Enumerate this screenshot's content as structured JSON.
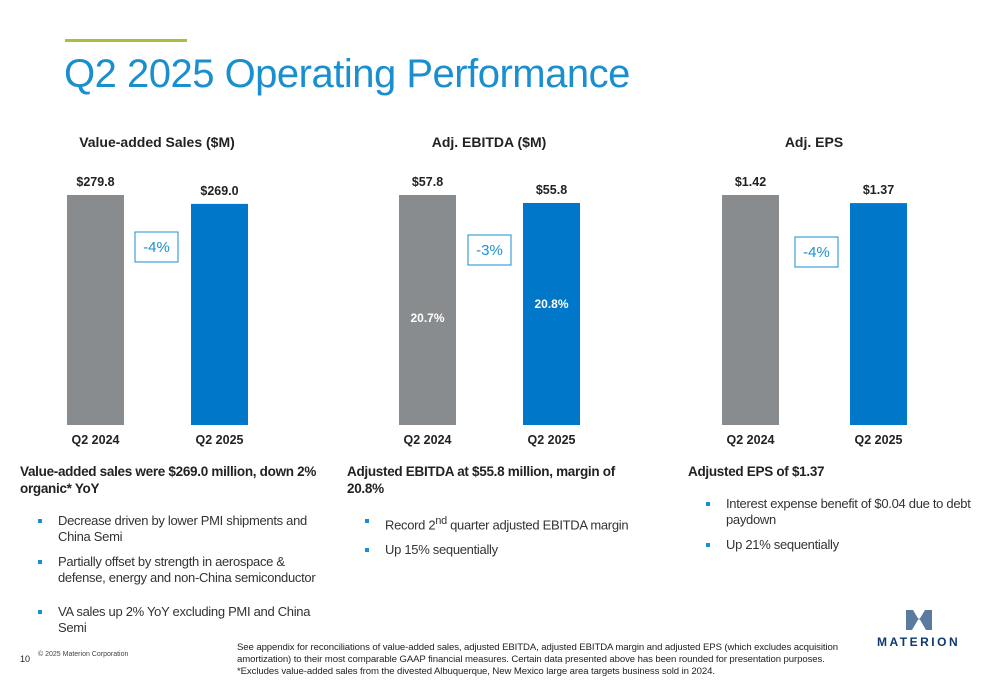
{
  "slide": {
    "title": "Q2 2025 Operating Performance",
    "page_number": "10",
    "copyright": "© 2025 Materion Corporation",
    "footnotes": [
      "See appendix for reconciliations of value-added sales, adjusted EBITDA, adjusted EBITDA margin and adjusted EPS (which excludes acquisition amortization) to their most comparable GAAP financial measures. Certain data presented above has been rounded for presentation purposes.",
      "*Excludes value-added sales from the divested Albuquerque, New Mexico large area targets business sold in 2024."
    ],
    "logo": "MATERION"
  },
  "chart_data": [
    {
      "type": "bar",
      "title": "Value-added Sales ($M)",
      "categories": [
        "Q2 2024",
        "Q2 2025"
      ],
      "values": [
        279.8,
        269.0
      ],
      "value_labels": [
        "$279.8",
        "$269.0"
      ],
      "colors": [
        "#898c8e",
        "#0077c8"
      ],
      "annotation": "-4%"
    },
    {
      "type": "bar",
      "title": "Adj. EBITDA ($M)",
      "categories": [
        "Q2 2024",
        "Q2 2025"
      ],
      "values": [
        57.8,
        55.8
      ],
      "value_labels": [
        "$57.8",
        "$55.8"
      ],
      "colors": [
        "#898c8e",
        "#0077c8"
      ],
      "annotation": "-3%",
      "inner_labels": [
        "20.7%",
        "20.8%"
      ]
    },
    {
      "type": "bar",
      "title": "Adj. EPS",
      "categories": [
        "Q2 2024",
        "Q2 2025"
      ],
      "values": [
        1.42,
        1.37
      ],
      "value_labels": [
        "$1.42",
        "$1.37"
      ],
      "colors": [
        "#898c8e",
        "#0077c8"
      ],
      "annotation": "-4%"
    }
  ],
  "panels": [
    {
      "heading": "Value-added sales were $269.0 million, down 2% organic* YoY",
      "bullets": [
        "Decrease driven by lower PMI shipments and China Semi",
        "Partially offset by strength in aerospace & defense, energy and non-China semiconductor",
        "VA sales up 2% YoY excluding PMI and China Semi"
      ]
    },
    {
      "heading": "Adjusted EBITDA at $55.8 million, margin of 20.8%",
      "bullets": [
        [
          "Record 2",
          "nd",
          " quarter adjusted EBITDA margin"
        ],
        "Up 15% sequentially"
      ]
    },
    {
      "heading": "Adjusted EPS of $1.37",
      "bullets": [
        "Interest expense benefit of $0.04 due to debt paydown",
        "Up 21% sequentially"
      ]
    }
  ]
}
